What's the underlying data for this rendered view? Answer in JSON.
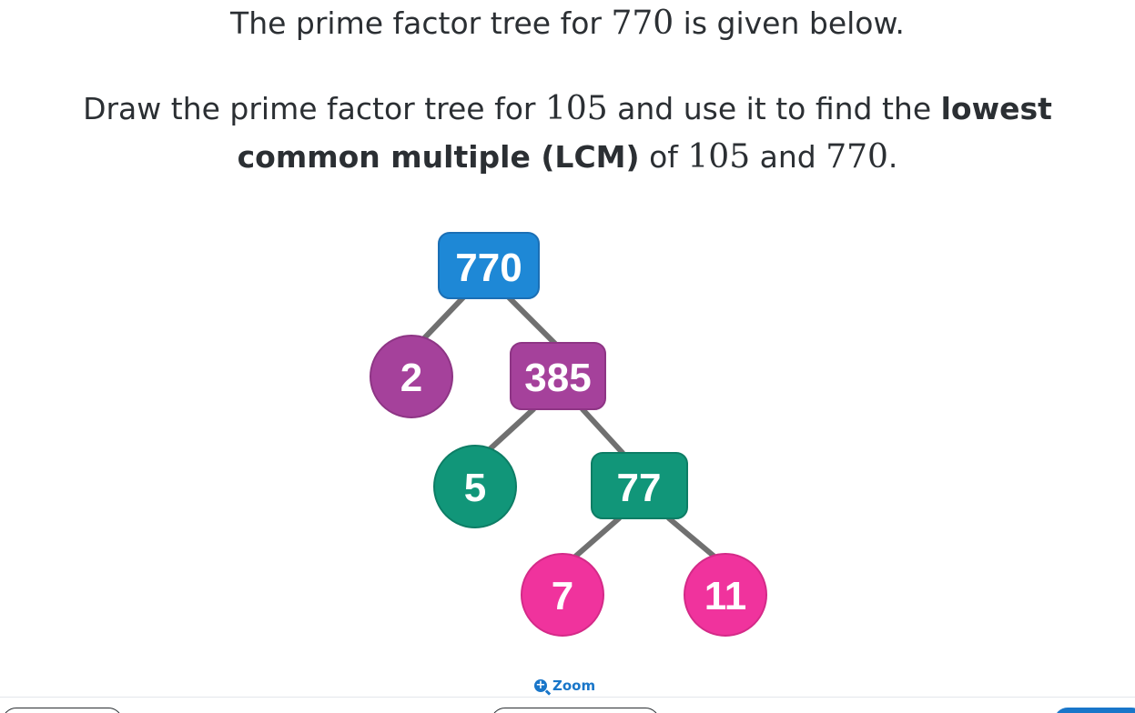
{
  "question": {
    "line1": {
      "before": "The prime factor tree for ",
      "num": "770",
      "after": " is given below."
    },
    "line2": {
      "before": "Draw the prime factor tree for ",
      "num": "105",
      "middle": " and use it to find the ",
      "bold": "lowest"
    },
    "line3": {
      "bold": "common multiple (LCM)",
      "middle": " of ",
      "num1": "105",
      "and": " and ",
      "num2": "770",
      "end": "."
    }
  },
  "tree": {
    "root": "770",
    "level1_prime": "2",
    "level1_composite": "385",
    "level2_prime": "5",
    "level2_composite": "77",
    "level3_prime_left": "7",
    "level3_prime_right": "11"
  },
  "colors": {
    "blue": "#1e88d6",
    "purple": "#a5419b",
    "green": "#119679",
    "pink": "#f0339d",
    "edge": "#707070",
    "accent": "#1976c9"
  },
  "zoom": {
    "label": "Zoom",
    "icon": "zoom-in-icon"
  }
}
